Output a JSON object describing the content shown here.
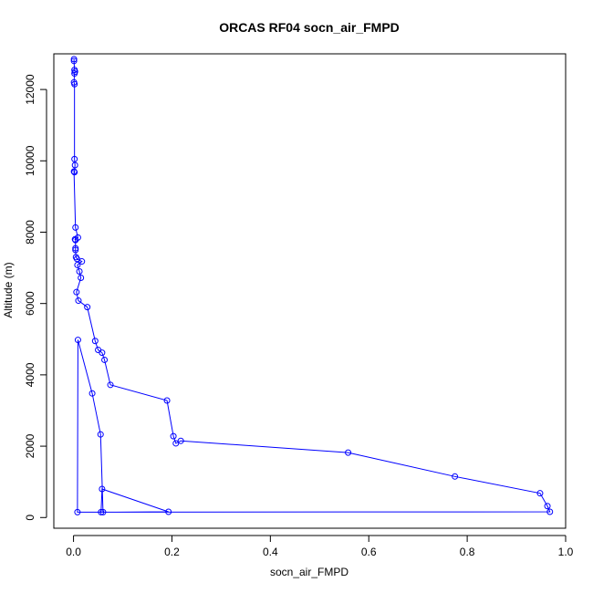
{
  "chart_data": {
    "type": "line",
    "title": "ORCAS RF04 socn_air_FMPD",
    "xlabel": "socn_air_FMPD",
    "ylabel": "Altitude (m)",
    "xlim": [
      -0.04,
      1.0
    ],
    "ylim": [
      -300,
      13000
    ],
    "xticks": [
      "0.0",
      "0.2",
      "0.4",
      "0.6",
      "0.8",
      "1.0"
    ],
    "yticks": [
      "0",
      "2000",
      "4000",
      "6000",
      "8000",
      "10000",
      "12000"
    ],
    "grid": false,
    "series": [
      {
        "color": "#0000ff",
        "marker": "open-circle",
        "x": [
          0.001,
          0.001,
          0.002,
          0.003,
          0.002,
          0.001,
          0.002,
          0.002,
          0.003,
          0.002,
          0.001,
          0.004,
          0.009,
          0.003,
          0.004,
          0.004,
          0.004,
          0.005,
          0.007,
          0.017,
          0.008,
          0.012,
          0.015,
          0.006,
          0.01,
          0.028,
          0.044,
          0.05,
          0.058,
          0.063,
          0.075,
          0.19,
          0.203,
          0.208,
          0.218,
          0.558,
          0.775,
          0.948,
          0.963,
          0.968,
          0.008,
          0.009,
          0.038,
          0.055,
          0.06,
          0.193,
          0.058,
          0.056
        ],
        "y": [
          12850,
          12800,
          12550,
          12500,
          12450,
          12200,
          12150,
          10050,
          9880,
          9680,
          9700,
          8130,
          7850,
          7800,
          7780,
          7550,
          7500,
          7300,
          7250,
          7180,
          7080,
          6900,
          6720,
          6320,
          6080,
          5900,
          4950,
          4700,
          4620,
          4420,
          3720,
          3280,
          2280,
          2080,
          2150,
          1820,
          1150,
          680,
          320,
          160,
          150,
          4980,
          3480,
          2330,
          150,
          160,
          800,
          150
        ]
      }
    ]
  }
}
